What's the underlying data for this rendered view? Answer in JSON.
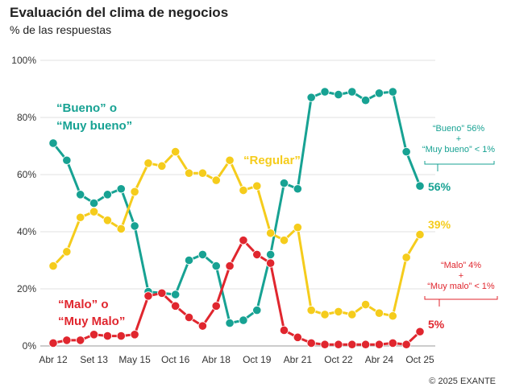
{
  "title": "Evaluación del clima de negocios",
  "subtitle": "% de las respuestas",
  "copyright": "© 2025 EXANTE",
  "colors": {
    "bueno": "#17a293",
    "regular": "#f5cc1c",
    "malo": "#e0262e"
  },
  "chart_data": {
    "type": "line",
    "title": "Evaluación del clima de negocios",
    "ylabel": "% de las respuestas",
    "ylim": [
      0,
      100
    ],
    "yticks": [
      "0%",
      "20%",
      "40%",
      "60%",
      "80%",
      "100%"
    ],
    "x_tick_labels": [
      "Abr 12",
      "Set 13",
      "May 15",
      "Oct 16",
      "Abr 18",
      "Oct 19",
      "Abr 21",
      "Oct 22",
      "Abr 24",
      "Oct 25"
    ],
    "grid": true,
    "series": [
      {
        "key": "bueno",
        "name": "“Bueno” o “Muy bueno”",
        "label_lines": [
          "“Bueno” o",
          "“Muy bueno”"
        ],
        "values": [
          71,
          65,
          53,
          50,
          53,
          55,
          42,
          19,
          18.5,
          18,
          30,
          32,
          28,
          8,
          9,
          12.5,
          32,
          57,
          55,
          87,
          89,
          88,
          89,
          86,
          88.5,
          89,
          68,
          56
        ],
        "end_label": "56%",
        "note_lines": [
          "“Bueno” 56%",
          "+",
          "“Muy bueno” < 1%"
        ]
      },
      {
        "key": "regular",
        "name": "“Regular”",
        "label_lines": [
          "“Regular”"
        ],
        "values": [
          28,
          33,
          45,
          47,
          44,
          41,
          54,
          64,
          63,
          68,
          60.5,
          60.5,
          58,
          65,
          54.5,
          56,
          39.5,
          37,
          41.5,
          12.5,
          11,
          12,
          11,
          14.5,
          11.5,
          10.5,
          31,
          39
        ],
        "end_label": "39%",
        "note_lines": []
      },
      {
        "key": "malo",
        "name": "“Malo” o “Muy Malo”",
        "label_lines": [
          "“Malo” o",
          "“Muy Malo”"
        ],
        "values": [
          1,
          2,
          2,
          4,
          3.5,
          3.5,
          4,
          17.5,
          18.5,
          14,
          10,
          7,
          14,
          28,
          37,
          32,
          29,
          5.5,
          3,
          1,
          0.5,
          0.5,
          0.5,
          0.5,
          0.5,
          1,
          0.5,
          5
        ],
        "end_label": "5%",
        "note_lines": [
          "“Malo” 4%",
          "+",
          "“Muy malo” < 1%"
        ]
      }
    ]
  }
}
